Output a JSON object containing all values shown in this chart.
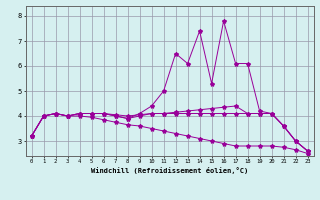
{
  "x": [
    0,
    1,
    2,
    3,
    4,
    5,
    6,
    7,
    8,
    9,
    10,
    11,
    12,
    13,
    14,
    15,
    16,
    17,
    18,
    19,
    20,
    21,
    22,
    23
  ],
  "line1": [
    3.2,
    4.0,
    4.1,
    4.0,
    4.1,
    4.1,
    4.1,
    4.0,
    3.9,
    4.1,
    4.4,
    5.0,
    6.5,
    6.1,
    7.4,
    5.3,
    7.8,
    6.1,
    6.1,
    4.2,
    4.1,
    3.6,
    3.0,
    2.6
  ],
  "line2": [
    3.2,
    4.0,
    4.1,
    4.0,
    4.1,
    4.1,
    4.1,
    4.0,
    3.9,
    4.0,
    4.1,
    4.1,
    4.15,
    4.2,
    4.25,
    4.3,
    4.35,
    4.4,
    4.1,
    4.1,
    4.1,
    3.6,
    3.0,
    2.6
  ],
  "line3": [
    3.2,
    4.0,
    4.1,
    4.0,
    4.0,
    3.95,
    3.85,
    3.75,
    3.65,
    3.6,
    3.5,
    3.4,
    3.3,
    3.2,
    3.1,
    3.0,
    2.9,
    2.8,
    2.8,
    2.8,
    2.8,
    2.75,
    2.65,
    2.5
  ],
  "line4": [
    3.2,
    4.0,
    4.1,
    4.0,
    4.1,
    4.1,
    4.1,
    4.05,
    4.0,
    4.05,
    4.1,
    4.1,
    4.1,
    4.1,
    4.1,
    4.1,
    4.1,
    4.1,
    4.1,
    4.1,
    4.1,
    3.6,
    3.0,
    2.6
  ],
  "line_color": "#990099",
  "bg_color": "#d6f0f0",
  "grid_color": "#9999aa",
  "xlabel": "Windchill (Refroidissement éolien,°C)",
  "ylim": [
    2.4,
    8.4
  ],
  "yticks": [
    3,
    4,
    5,
    6,
    7,
    8
  ],
  "xticks": [
    0,
    1,
    2,
    3,
    4,
    5,
    6,
    7,
    8,
    9,
    10,
    11,
    12,
    13,
    14,
    15,
    16,
    17,
    18,
    19,
    20,
    21,
    22,
    23
  ]
}
